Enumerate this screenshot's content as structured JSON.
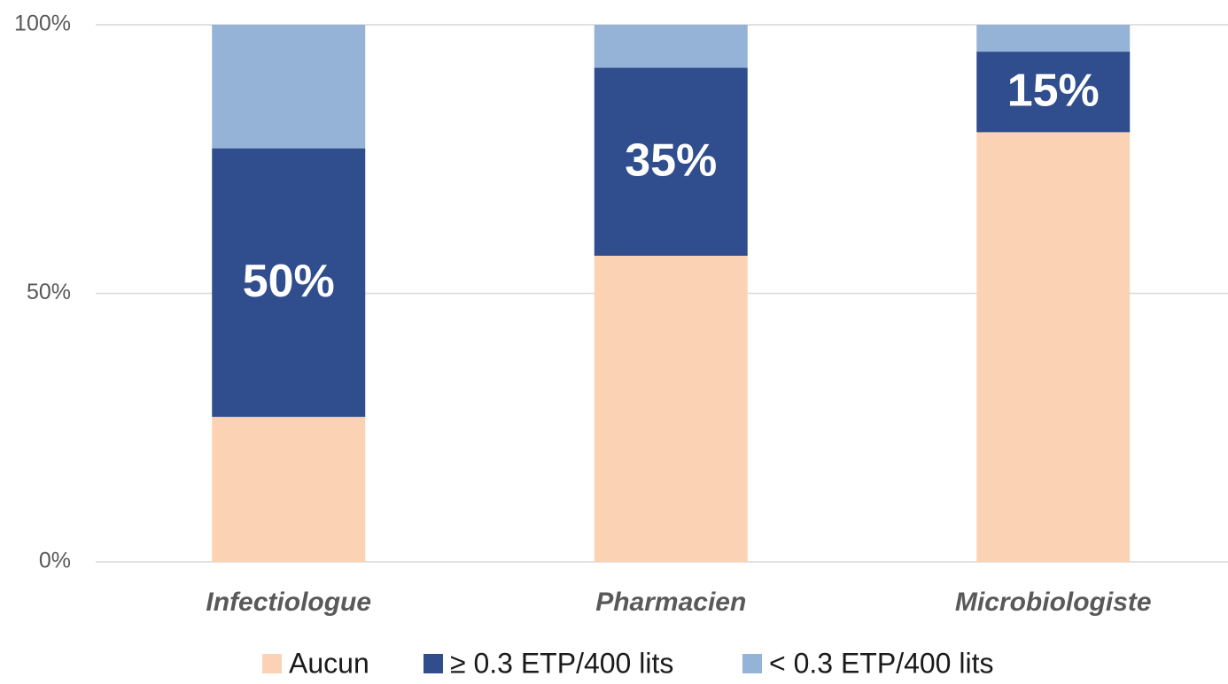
{
  "chart_data": {
    "type": "stacked_bar",
    "categories": [
      "Infectiologue",
      "Pharmacien",
      "Microbiologiste"
    ],
    "series": [
      {
        "name": "Aucun",
        "color": "#fbd3b4",
        "values": [
          27,
          57,
          80
        ]
      },
      {
        "name": "≥ 0.3 ETP/400 lits",
        "color": "#304d8d",
        "values": [
          50,
          35,
          15
        ],
        "value_labels": [
          "50%",
          "35%",
          "15%"
        ]
      },
      {
        "name": "< 0.3 ETP/400 lits",
        "color": "#95b3d7",
        "values": [
          23,
          8,
          5
        ]
      }
    ],
    "ylim": [
      0,
      100
    ],
    "yticks": [
      {
        "value": 0,
        "label": "0%"
      },
      {
        "value": 50,
        "label": "50%"
      },
      {
        "value": 100,
        "label": "100%"
      }
    ],
    "grid": true,
    "legend": "bottom"
  }
}
